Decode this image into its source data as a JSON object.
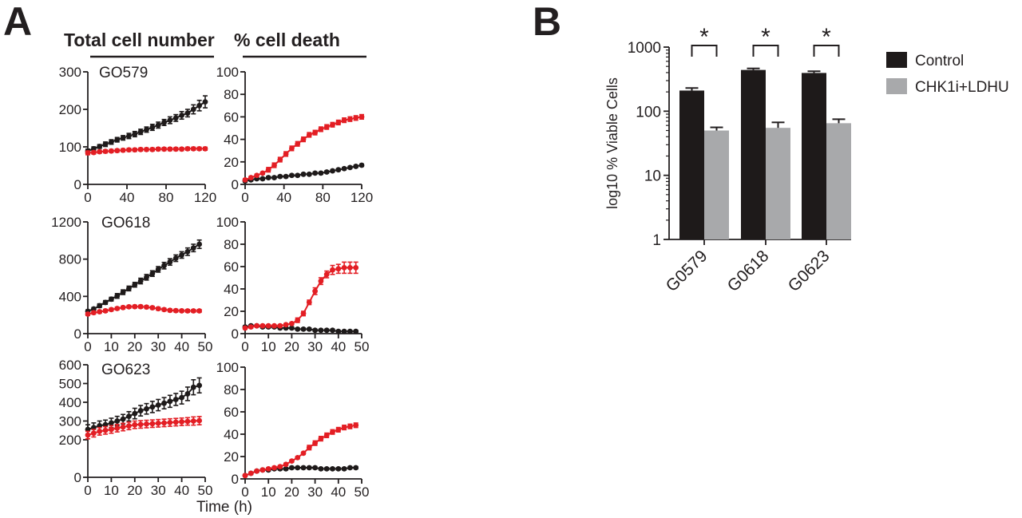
{
  "panel_a": {
    "letter": "A",
    "header_total": "Total cell number",
    "header_death": "% cell death",
    "xlabel": "Time (h)"
  },
  "panel_b": {
    "letter": "B"
  },
  "colors": {
    "control": "#1e1a1a",
    "treated": "#e31e24",
    "gray_bar": "#a8a9ab",
    "axis": "#231f20"
  },
  "chart_data": [
    {
      "id": "go579-total",
      "type": "line",
      "cell_line": "GO579",
      "measure": "Total cell number",
      "xlim": [
        0,
        120
      ],
      "ylim": [
        0,
        300
      ],
      "xticks": [
        0,
        40,
        80,
        120
      ],
      "yticks": [
        0,
        100,
        200,
        300
      ],
      "x": [
        0,
        6,
        12,
        18,
        24,
        30,
        36,
        42,
        48,
        54,
        60,
        66,
        72,
        78,
        84,
        90,
        96,
        102,
        108,
        114,
        120
      ],
      "series": [
        {
          "name": "Control",
          "color": "#1e1a1a",
          "values": [
            89,
            95,
            101,
            107,
            113,
            119,
            124,
            129,
            134,
            140,
            146,
            152,
            158,
            165,
            171,
            177,
            184,
            190,
            200,
            210,
            220
          ],
          "err": [
            5,
            5,
            5,
            6,
            6,
            6,
            6,
            7,
            7,
            7,
            7,
            8,
            8,
            8,
            9,
            9,
            10,
            10,
            12,
            14,
            16
          ]
        },
        {
          "name": "CHK1i+LDHU",
          "color": "#e31e24",
          "values": [
            84,
            85,
            87,
            88,
            89,
            90,
            91,
            92,
            92,
            93,
            93,
            93,
            94,
            94,
            94,
            94,
            94,
            95,
            95,
            95,
            95
          ],
          "err": [
            5,
            4,
            4,
            4,
            4,
            4,
            4,
            4,
            4,
            4,
            4,
            4,
            4,
            4,
            4,
            4,
            4,
            4,
            4,
            4,
            4
          ]
        }
      ]
    },
    {
      "id": "go579-death",
      "type": "line",
      "cell_line": "GO579",
      "measure": "% cell death",
      "xlim": [
        0,
        120
      ],
      "ylim": [
        0,
        100
      ],
      "xticks": [
        0,
        40,
        80,
        120
      ],
      "yticks": [
        0,
        20,
        40,
        60,
        80,
        100
      ],
      "x": [
        0,
        6,
        12,
        18,
        24,
        30,
        36,
        42,
        48,
        54,
        60,
        66,
        72,
        78,
        84,
        90,
        96,
        102,
        108,
        114,
        120
      ],
      "series": [
        {
          "name": "Control",
          "color": "#1e1a1a",
          "values": [
            3,
            4,
            5,
            5,
            6,
            6,
            7,
            7,
            8,
            8,
            9,
            9,
            10,
            10,
            11,
            12,
            13,
            14,
            15,
            16,
            17
          ],
          "err": [
            1,
            1,
            1,
            1,
            1,
            1,
            1,
            1,
            1,
            1,
            1,
            1,
            1,
            1,
            1,
            1,
            1,
            1,
            1,
            1,
            1
          ]
        },
        {
          "name": "CHK1i+LDHU",
          "color": "#e31e24",
          "values": [
            4,
            6,
            8,
            10,
            13,
            17,
            22,
            27,
            32,
            36,
            40,
            44,
            46,
            49,
            51,
            53,
            55,
            57,
            58,
            59,
            60
          ],
          "err": [
            1,
            1,
            1,
            1,
            2,
            2,
            2,
            2,
            2,
            2,
            2,
            2,
            2,
            2,
            2,
            2,
            2,
            2,
            2,
            2,
            2
          ]
        }
      ]
    },
    {
      "id": "go618-total",
      "type": "line",
      "cell_line": "GO618",
      "measure": "Total cell number",
      "xlim": [
        0,
        50
      ],
      "ylim": [
        0,
        1200
      ],
      "xticks": [
        0,
        10,
        20,
        30,
        40,
        50
      ],
      "yticks": [
        0,
        400,
        800,
        1200
      ],
      "x": [
        0,
        2.5,
        5,
        7.5,
        10,
        12.5,
        15,
        17.5,
        20,
        22.5,
        25,
        27.5,
        30,
        32.5,
        35,
        37.5,
        40,
        42.5,
        45,
        47.5
      ],
      "series": [
        {
          "name": "Control",
          "color": "#1e1a1a",
          "values": [
            240,
            265,
            300,
            335,
            370,
            405,
            445,
            485,
            525,
            565,
            605,
            645,
            690,
            730,
            770,
            810,
            845,
            880,
            920,
            960
          ],
          "err": [
            15,
            15,
            20,
            20,
            20,
            25,
            25,
            25,
            25,
            30,
            30,
            30,
            30,
            35,
            35,
            35,
            35,
            40,
            40,
            45
          ]
        },
        {
          "name": "CHK1i+LDHU",
          "color": "#e31e24",
          "values": [
            210,
            225,
            235,
            245,
            258,
            270,
            280,
            288,
            290,
            290,
            285,
            278,
            268,
            258,
            250,
            247,
            245,
            244,
            244,
            244
          ],
          "err": [
            15,
            15,
            15,
            15,
            15,
            15,
            15,
            15,
            15,
            15,
            15,
            15,
            15,
            15,
            15,
            15,
            15,
            15,
            15,
            15
          ]
        }
      ]
    },
    {
      "id": "go618-death",
      "type": "line",
      "cell_line": "GO618",
      "measure": "% cell death",
      "xlim": [
        0,
        50
      ],
      "ylim": [
        0,
        100
      ],
      "xticks": [
        0,
        10,
        20,
        30,
        40,
        50
      ],
      "yticks": [
        0,
        20,
        40,
        60,
        80,
        100
      ],
      "x": [
        0,
        2.5,
        5,
        7.5,
        10,
        12.5,
        15,
        17.5,
        20,
        22.5,
        25,
        27.5,
        30,
        32.5,
        35,
        37.5,
        40,
        42.5,
        45,
        47.5
      ],
      "series": [
        {
          "name": "Control",
          "color": "#1e1a1a",
          "values": [
            6,
            7,
            7,
            6,
            6,
            6,
            5,
            5,
            5,
            4,
            4,
            4,
            3,
            3,
            3,
            3,
            2,
            2,
            2,
            2
          ],
          "err": [
            1,
            1,
            1,
            1,
            1,
            1,
            1,
            1,
            1,
            1,
            1,
            1,
            1,
            1,
            1,
            1,
            1,
            1,
            1,
            1
          ]
        },
        {
          "name": "CHK1i+LDHU",
          "color": "#e31e24",
          "values": [
            5,
            6,
            7,
            7,
            7,
            7,
            7,
            8,
            9,
            12,
            18,
            28,
            38,
            47,
            53,
            57,
            58,
            59,
            59,
            59
          ],
          "err": [
            1,
            1,
            1,
            1,
            1,
            1,
            1,
            1,
            1,
            2,
            2,
            2,
            3,
            3,
            3,
            4,
            4,
            5,
            5,
            5
          ]
        }
      ]
    },
    {
      "id": "go623-total",
      "type": "line",
      "cell_line": "GO623",
      "measure": "Total cell number",
      "xlim": [
        0,
        50
      ],
      "ylim": [
        0,
        600
      ],
      "xticks": [
        0,
        10,
        20,
        30,
        40,
        50
      ],
      "yticks": [
        0,
        200,
        300,
        400,
        500,
        600
      ],
      "x": [
        0,
        2.5,
        5,
        7.5,
        10,
        12.5,
        15,
        17.5,
        20,
        22.5,
        25,
        27.5,
        30,
        32.5,
        35,
        37.5,
        40,
        42.5,
        45,
        47.5
      ],
      "series": [
        {
          "name": "Control",
          "color": "#1e1a1a",
          "values": [
            255,
            265,
            275,
            280,
            290,
            300,
            310,
            325,
            340,
            355,
            365,
            375,
            385,
            395,
            405,
            415,
            425,
            445,
            480,
            490
          ],
          "err": [
            25,
            25,
            25,
            25,
            25,
            25,
            25,
            25,
            28,
            28,
            28,
            30,
            30,
            30,
            32,
            32,
            34,
            36,
            40,
            40
          ]
        },
        {
          "name": "CHK1i+LDHU",
          "color": "#e31e24",
          "values": [
            225,
            235,
            245,
            250,
            255,
            262,
            268,
            274,
            280,
            282,
            284,
            286,
            288,
            290,
            292,
            294,
            296,
            298,
            300,
            302
          ],
          "err": [
            20,
            20,
            20,
            20,
            20,
            20,
            20,
            20,
            20,
            20,
            20,
            20,
            20,
            20,
            20,
            20,
            20,
            20,
            22,
            22
          ]
        }
      ]
    },
    {
      "id": "go623-death",
      "type": "line",
      "cell_line": "GO623",
      "measure": "% cell death",
      "xlim": [
        0,
        50
      ],
      "ylim": [
        0,
        100
      ],
      "xticks": [
        0,
        10,
        20,
        30,
        40,
        50
      ],
      "yticks": [
        0,
        20,
        40,
        60,
        80,
        100
      ],
      "x": [
        0,
        2.5,
        5,
        7.5,
        10,
        12.5,
        15,
        17.5,
        20,
        22.5,
        25,
        27.5,
        30,
        32.5,
        35,
        37.5,
        40,
        42.5,
        45,
        47.5
      ],
      "series": [
        {
          "name": "Control",
          "color": "#1e1a1a",
          "values": [
            3,
            5,
            7,
            8,
            8,
            9,
            9,
            9,
            10,
            10,
            10,
            10,
            10,
            9,
            9,
            9,
            9,
            9,
            10,
            10
          ],
          "err": [
            1,
            1,
            1,
            1,
            1,
            1,
            1,
            1,
            1,
            1,
            1,
            1,
            1,
            1,
            1,
            1,
            1,
            1,
            1,
            1
          ]
        },
        {
          "name": "CHK1i+LDHU",
          "color": "#e31e24",
          "values": [
            3,
            5,
            7,
            8,
            9,
            10,
            11,
            13,
            16,
            19,
            23,
            28,
            32,
            36,
            39,
            42,
            44,
            46,
            47,
            48
          ],
          "err": [
            1,
            1,
            1,
            1,
            1,
            1,
            1,
            1,
            1,
            1,
            1,
            2,
            2,
            2,
            2,
            2,
            2,
            2,
            2,
            2
          ]
        }
      ]
    },
    {
      "id": "viability-bars",
      "type": "bar",
      "scale": "log10",
      "ylabel": "log10 % Viable Cells",
      "categories": [
        "G0579",
        "G0618",
        "G0623"
      ],
      "ylim": [
        1,
        1000
      ],
      "yticks": [
        1,
        10,
        100,
        1000
      ],
      "series": [
        {
          "name": "Control",
          "color": "#1e1a1a",
          "values": [
            210,
            440,
            395
          ],
          "err": [
            20,
            25,
            25
          ]
        },
        {
          "name": "CHK1i+LDHU",
          "color": "#a8a9ab",
          "values": [
            50,
            55,
            65
          ],
          "err": [
            6,
            12,
            10
          ]
        }
      ],
      "significance": [
        "*",
        "*",
        "*"
      ],
      "legend": [
        "Control",
        "CHK1i+LDHU"
      ]
    }
  ]
}
